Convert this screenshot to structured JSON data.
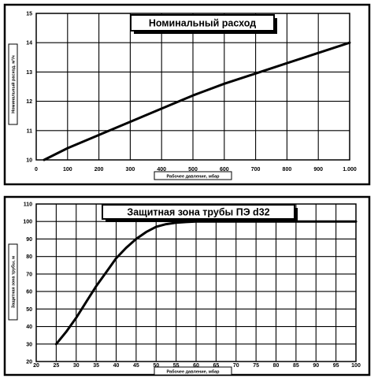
{
  "chart_data": [
    {
      "type": "line",
      "title": "Номинальный расход",
      "xlabel": "Рабочее давление, мбар",
      "ylabel": "Номинальный расход, м³/ч",
      "xticks": [
        "0",
        "100",
        "200",
        "300",
        "400",
        "500",
        "600",
        "700",
        "800",
        "900",
        "1.000"
      ],
      "yticks": [
        "10",
        "11",
        "12",
        "13",
        "14",
        "15"
      ],
      "xlim": [
        0,
        1000
      ],
      "ylim": [
        10,
        15
      ],
      "grid": true,
      "series": [
        {
          "x": [
            25,
            100,
            200,
            300,
            400,
            500,
            600,
            700,
            800,
            900,
            1000
          ],
          "y": [
            10.0,
            10.4,
            10.85,
            11.3,
            11.75,
            12.2,
            12.6,
            12.95,
            13.3,
            13.65,
            14.0
          ]
        }
      ]
    },
    {
      "type": "line",
      "title": "Защитная зона трубы ПЭ d32",
      "xlabel": "Рабочее давление, мбар",
      "ylabel": "Защитная зона трубы, м",
      "xticks": [
        "20",
        "25",
        "30",
        "35",
        "40",
        "45",
        "50",
        "55",
        "60",
        "65",
        "70",
        "75",
        "80",
        "85",
        "90",
        "95",
        "100"
      ],
      "yticks": [
        "20",
        "30",
        "40",
        "50",
        "60",
        "70",
        "80",
        "90",
        "100",
        "110"
      ],
      "xlim": [
        20,
        100
      ],
      "ylim": [
        20,
        110
      ],
      "grid": true,
      "series": [
        {
          "x": [
            25,
            27.5,
            30,
            32.5,
            35,
            37.5,
            40,
            42.5,
            45,
            47.5,
            50,
            52.5,
            55,
            57.5,
            60,
            65,
            70,
            80,
            90,
            100
          ],
          "y": [
            30,
            37,
            45,
            54,
            63,
            71,
            79,
            85,
            90,
            94,
            97,
            98.5,
            99.3,
            99.7,
            100,
            100,
            100,
            100,
            100,
            100
          ]
        }
      ]
    }
  ]
}
